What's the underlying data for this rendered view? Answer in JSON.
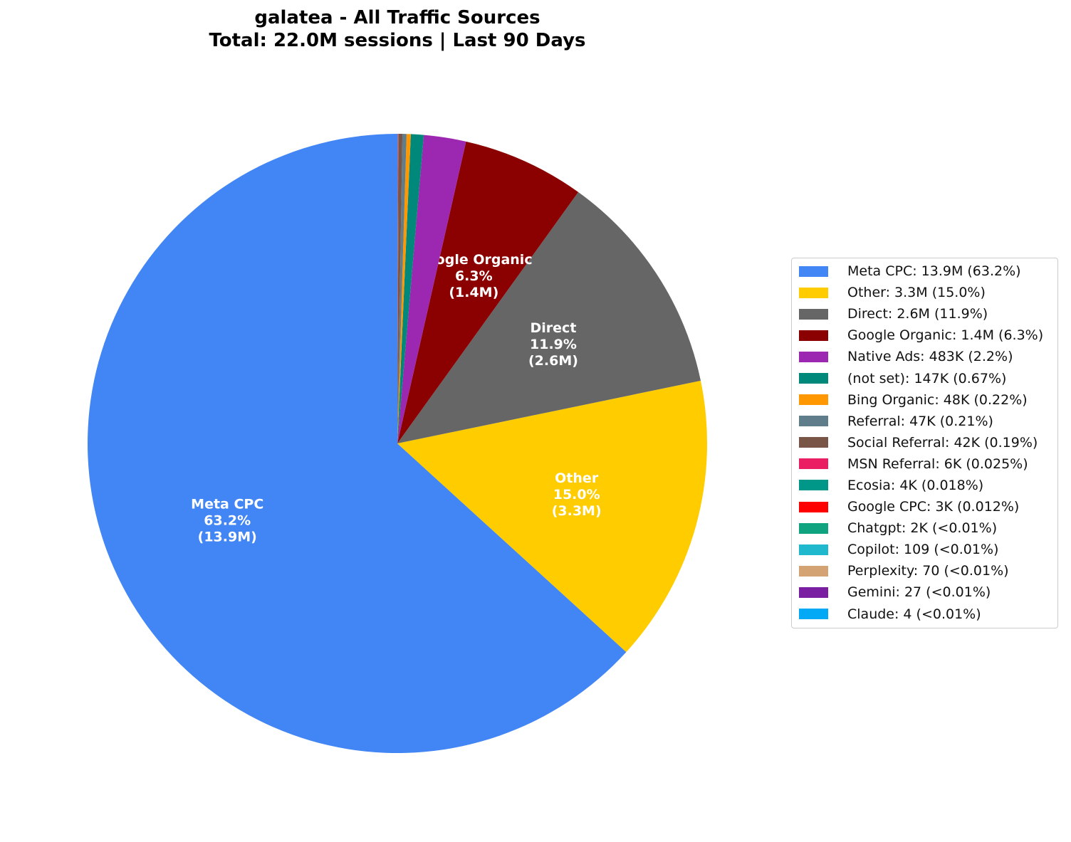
{
  "chart_data": {
    "type": "pie",
    "title": [
      "galatea - All Traffic Sources",
      "Total: 22.0M sessions | Last 90 Days"
    ],
    "start_angle_deg": 90,
    "direction": "counterclockwise",
    "legend_position": "right",
    "slices": [
      {
        "name": "Meta CPC",
        "sessions": 13900000,
        "color": "#4285F4",
        "legend": "Meta CPC: 13.9M (63.2%)",
        "label": [
          "Meta CPC",
          "63.2%",
          "(13.9M)"
        ]
      },
      {
        "name": "Other",
        "sessions": 3300000,
        "color": "#FFCC00",
        "legend": "Other: 3.3M (15.0%)",
        "label": [
          "Other",
          "15.0%",
          "(3.3M)"
        ]
      },
      {
        "name": "Direct",
        "sessions": 2600000,
        "color": "#666666",
        "legend": "Direct: 2.6M (11.9%)",
        "label": [
          "Direct",
          "11.9%",
          "(2.6M)"
        ]
      },
      {
        "name": "Google Organic",
        "sessions": 1400000,
        "color": "#8B0000",
        "legend": "Google Organic: 1.4M (6.3%)",
        "label": [
          "Google Organic",
          "6.3%",
          "(1.4M)"
        ]
      },
      {
        "name": "Native Ads",
        "sessions": 483000,
        "color": "#9C27B0",
        "legend": "Native Ads: 483K (2.2%)"
      },
      {
        "name": "(not set)",
        "sessions": 147000,
        "color": "#00897B",
        "legend": "(not set): 147K (0.67%)"
      },
      {
        "name": "Bing Organic",
        "sessions": 48000,
        "color": "#FF9800",
        "legend": "Bing Organic: 48K (0.22%)"
      },
      {
        "name": "Referral",
        "sessions": 47000,
        "color": "#607D8B",
        "legend": "Referral: 47K (0.21%)"
      },
      {
        "name": "Social Referral",
        "sessions": 42000,
        "color": "#795548",
        "legend": "Social Referral: 42K (0.19%)"
      },
      {
        "name": "MSN Referral",
        "sessions": 6000,
        "color": "#E91E63",
        "legend": "MSN Referral: 6K (0.025%)"
      },
      {
        "name": "Ecosia",
        "sessions": 4000,
        "color": "#009688",
        "legend": "Ecosia: 4K (0.018%)"
      },
      {
        "name": "Google CPC",
        "sessions": 3000,
        "color": "#FF0000",
        "legend": "Google CPC: 3K (0.012%)"
      },
      {
        "name": "Chatgpt",
        "sessions": 2000,
        "color": "#10A37F",
        "legend": "Chatgpt: 2K (<0.01%)"
      },
      {
        "name": "Copilot",
        "sessions": 109,
        "color": "#20B8CD",
        "legend": "Copilot: 109 (<0.01%)"
      },
      {
        "name": "Perplexity",
        "sessions": 70,
        "color": "#D4A373",
        "legend": "Perplexity: 70 (<0.01%)"
      },
      {
        "name": "Gemini",
        "sessions": 27,
        "color": "#7B1FA2",
        "legend": "Gemini: 27 (<0.01%)"
      },
      {
        "name": "Claude",
        "sessions": 4,
        "color": "#03A9F4",
        "legend": "Claude: 4 (<0.01%)"
      }
    ]
  }
}
